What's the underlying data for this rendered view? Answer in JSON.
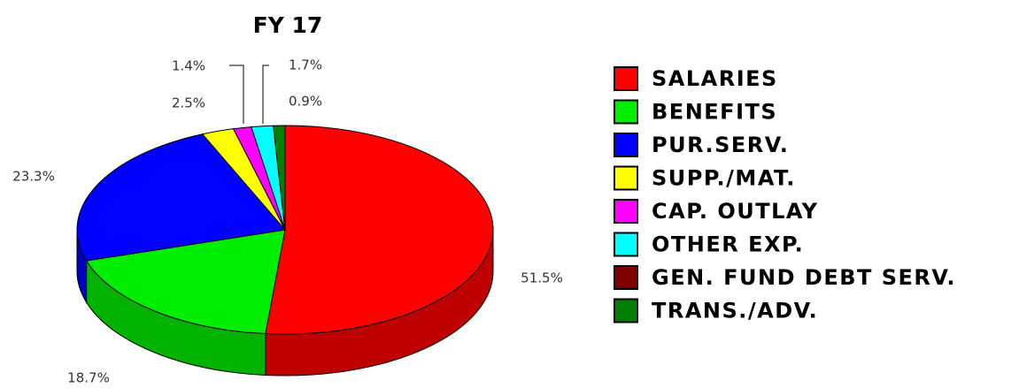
{
  "chart_data": {
    "type": "pie3d",
    "title": "FY 17",
    "categories": [
      "SALARIES",
      "BENEFITS",
      "PUR.SERV.",
      "SUPP./MAT.",
      "CAP. OUTLAY",
      "OTHER EXP.",
      "GEN. FUND DEBT SERV.",
      "TRANS./ADV."
    ],
    "values": [
      51.5,
      18.7,
      23.3,
      2.5,
      1.4,
      1.7,
      0,
      0.9
    ],
    "value_labels": [
      "51.5%",
      "18.7%",
      "23.3%",
      "2.5%",
      "1.4%",
      "1.7%",
      null,
      "0.9%"
    ],
    "colors": [
      "#ff0000",
      "#00ee00",
      "#0000ff",
      "#ffff00",
      "#ff00ff",
      "#00ffff",
      "#800000",
      "#008000"
    ],
    "legend": "right"
  }
}
